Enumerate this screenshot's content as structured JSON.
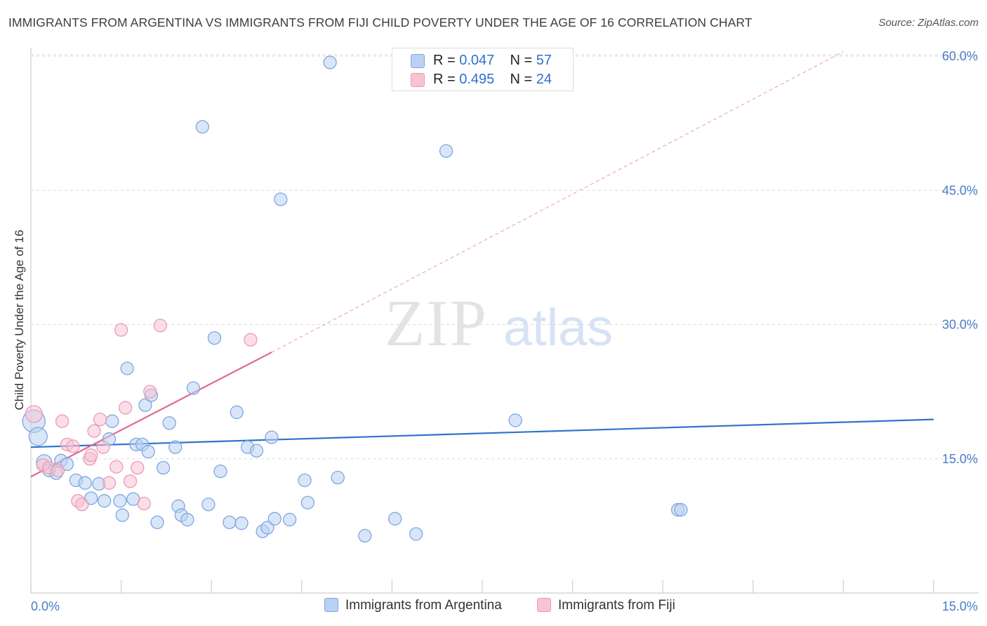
{
  "title": "IMMIGRANTS FROM ARGENTINA VS IMMIGRANTS FROM FIJI CHILD POVERTY UNDER THE AGE OF 16 CORRELATION CHART",
  "source": "Source: ZipAtlas.com",
  "watermark": {
    "zip": "ZIP",
    "atlas": "atlas"
  },
  "legend": {
    "r_label": "R =",
    "n_label": "N =",
    "rows": [
      {
        "r": "0.047",
        "n": "57"
      },
      {
        "r": "0.495",
        "n": "24"
      }
    ]
  },
  "colors": {
    "argentina_fill": "#b9d1f3",
    "argentina_stroke": "#7ea6e0",
    "argentina_line": "#2f73cf",
    "fiji_fill": "#f8c3d3",
    "fiji_stroke": "#ec9ab4",
    "fiji_line": "#e06a93",
    "tick_text": "#4a7cc9",
    "grid": "#d9d9d9"
  },
  "chart_data": {
    "type": "scatter",
    "title": "IMMIGRANTS FROM ARGENTINA VS IMMIGRANTS FROM FIJI CHILD POVERTY UNDER THE AGE OF 16 CORRELATION CHART",
    "xlabel": "",
    "ylabel": "Child Poverty Under the Age of 16",
    "xlim": [
      0,
      15
    ],
    "ylim": [
      0,
      60
    ],
    "x_ticks": [
      "0.0%",
      "15.0%"
    ],
    "y_ticks": [
      {
        "value": 15,
        "label": "15.0%"
      },
      {
        "value": 30,
        "label": "30.0%"
      },
      {
        "value": 45,
        "label": "45.0%"
      },
      {
        "value": 60,
        "label": "60.0%"
      }
    ],
    "grid": "horizontal dashed",
    "legend_position": "top-center",
    "series": [
      {
        "name": "Immigrants from Argentina",
        "r": 0.047,
        "n": 57,
        "trend": {
          "x0": 0,
          "y0": 16.3,
          "x1": 15,
          "y1": 19.4
        },
        "points": [
          [
            0.05,
            19.2,
            16
          ],
          [
            0.12,
            17.5,
            13
          ],
          [
            0.22,
            14.6,
            11
          ],
          [
            0.3,
            13.7,
            9
          ],
          [
            0.42,
            13.4,
            9
          ],
          [
            0.5,
            14.8,
            9
          ],
          [
            0.6,
            14.4,
            9
          ],
          [
            0.75,
            12.6,
            9
          ],
          [
            0.9,
            12.3,
            9
          ],
          [
            1.0,
            10.6,
            9
          ],
          [
            1.13,
            12.2,
            9
          ],
          [
            1.22,
            10.3,
            9
          ],
          [
            1.3,
            17.2,
            9
          ],
          [
            1.35,
            19.2,
            9
          ],
          [
            1.48,
            10.3,
            9
          ],
          [
            1.52,
            8.7,
            9
          ],
          [
            1.6,
            25.1,
            9
          ],
          [
            1.7,
            10.5,
            9
          ],
          [
            1.75,
            16.6,
            9
          ],
          [
            1.85,
            16.6,
            9
          ],
          [
            1.9,
            21.0,
            9
          ],
          [
            1.95,
            15.8,
            9
          ],
          [
            2.0,
            22.1,
            9
          ],
          [
            2.1,
            7.9,
            9
          ],
          [
            2.2,
            14.0,
            9
          ],
          [
            2.3,
            19.0,
            9
          ],
          [
            2.4,
            16.3,
            9
          ],
          [
            2.45,
            9.7,
            9
          ],
          [
            2.5,
            8.7,
            9
          ],
          [
            2.6,
            8.2,
            9
          ],
          [
            2.7,
            22.9,
            9
          ],
          [
            2.85,
            52.1,
            9
          ],
          [
            2.95,
            9.9,
            9
          ],
          [
            3.05,
            28.5,
            9
          ],
          [
            3.15,
            13.6,
            9
          ],
          [
            3.3,
            7.9,
            9
          ],
          [
            3.42,
            20.2,
            9
          ],
          [
            3.5,
            7.8,
            9
          ],
          [
            3.6,
            16.3,
            9
          ],
          [
            3.75,
            15.9,
            9
          ],
          [
            3.85,
            6.9,
            9
          ],
          [
            3.93,
            7.3,
            9
          ],
          [
            4.0,
            17.4,
            9
          ],
          [
            4.05,
            8.3,
            9
          ],
          [
            4.15,
            44.0,
            9
          ],
          [
            4.3,
            8.2,
            9
          ],
          [
            4.55,
            12.6,
            9
          ],
          [
            4.6,
            10.1,
            9
          ],
          [
            4.97,
            59.3,
            9
          ],
          [
            5.1,
            12.9,
            9
          ],
          [
            5.55,
            6.4,
            9
          ],
          [
            6.05,
            8.3,
            9
          ],
          [
            6.4,
            6.6,
            9
          ],
          [
            6.9,
            49.4,
            9
          ],
          [
            8.05,
            19.3,
            9
          ],
          [
            10.75,
            9.3,
            9
          ],
          [
            10.8,
            9.3,
            9
          ]
        ]
      },
      {
        "name": "Immigrants from Fiji",
        "r": 0.495,
        "n": 24,
        "trend": {
          "x0": 0,
          "y0": 13.0,
          "x1": 4.0,
          "y1": 26.9
        },
        "trend_extension": {
          "x0": 4.0,
          "y0": 26.9,
          "x1": 13.5,
          "y1": 60.5
        },
        "points": [
          [
            0.05,
            20.0,
            12
          ],
          [
            0.2,
            14.3,
            9
          ],
          [
            0.3,
            14.0,
            9
          ],
          [
            0.45,
            13.7,
            9
          ],
          [
            0.52,
            19.2,
            9
          ],
          [
            0.6,
            16.6,
            9
          ],
          [
            0.7,
            16.4,
            9
          ],
          [
            0.78,
            10.3,
            9
          ],
          [
            0.85,
            9.9,
            9
          ],
          [
            0.98,
            15.0,
            9
          ],
          [
            1.05,
            18.1,
            9
          ],
          [
            1.15,
            19.4,
            9
          ],
          [
            1.2,
            16.3,
            9
          ],
          [
            1.3,
            12.3,
            9
          ],
          [
            1.42,
            14.1,
            9
          ],
          [
            1.5,
            29.4,
            9
          ],
          [
            1.57,
            20.7,
            9
          ],
          [
            1.65,
            12.5,
            9
          ],
          [
            1.77,
            14.0,
            9
          ],
          [
            1.88,
            10.0,
            9
          ],
          [
            1.98,
            22.5,
            9
          ],
          [
            2.15,
            29.9,
            9
          ],
          [
            3.65,
            28.3,
            9
          ],
          [
            1.0,
            15.4,
            9
          ]
        ]
      }
    ]
  },
  "bottom_legend": [
    {
      "label": "Immigrants from Argentina"
    },
    {
      "label": "Immigrants from Fiji"
    }
  ]
}
